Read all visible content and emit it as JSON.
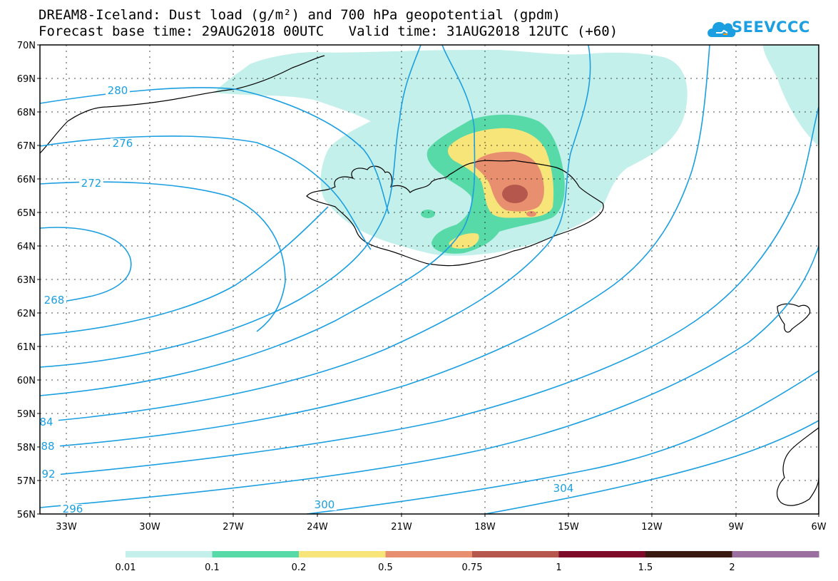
{
  "header": {
    "title_line1": "DREAM8-Iceland: Dust load (g/m²) and 700 hPa geopotential (gpdm)",
    "title_line2": "Forecast base time: 29AUG2018 00UTC   Valid time: 31AUG2018 12UTC (+60)"
  },
  "logo": {
    "text": "SEEVCCC",
    "icon": "cloud-logo-icon",
    "color": "#1b9fe0"
  },
  "map": {
    "lat_labels": [
      "70N",
      "69N",
      "68N",
      "67N",
      "66N",
      "65N",
      "64N",
      "63N",
      "62N",
      "61N",
      "60N",
      "59N",
      "58N",
      "57N",
      "56N"
    ],
    "lon_labels": [
      "33W",
      "30W",
      "27W",
      "24W",
      "21W",
      "18W",
      "15W",
      "12W",
      "9W",
      "6W"
    ],
    "contour_color": "#1b9fe0",
    "contour_labels": [
      "280",
      "276",
      "272",
      "268",
      "84",
      "88",
      "92",
      "296",
      "300",
      "304"
    ]
  },
  "colorbar": {
    "colors": [
      "#c4f0eb",
      "#58d9a8",
      "#f7e57a",
      "#e88f6f",
      "#b5574d",
      "#7c0a28",
      "#3a1a10",
      "#9b6fa0"
    ],
    "labels": [
      "0.01",
      "0.1",
      "0.2",
      "0.5",
      "0.75",
      "1",
      "1.5",
      "2"
    ]
  }
}
